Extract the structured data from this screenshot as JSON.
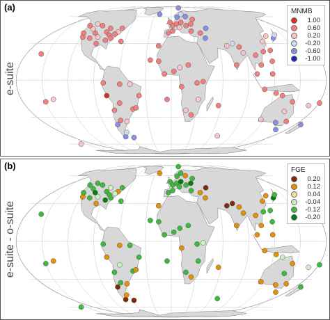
{
  "panels": [
    {
      "label": "(a)",
      "side_label": "e-suite",
      "legend": {
        "title": "MNMB",
        "entries": [
          {
            "label": "1.00",
            "color": "#d73027"
          },
          {
            "label": "0.60",
            "color": "#f08080"
          },
          {
            "label": "0.20",
            "color": "#f8c4c4"
          },
          {
            "label": "-0.20",
            "color": "#d6d8f4"
          },
          {
            "label": "-0.60",
            "color": "#8890e0"
          },
          {
            "label": "-1.00",
            "color": "#2424c0"
          }
        ]
      }
    },
    {
      "label": "(b)",
      "side_label": "e-suite - o-suite",
      "legend": {
        "title": "FGE",
        "entries": [
          {
            "label": "0.20",
            "color": "#7a2a08"
          },
          {
            "label": "0.12",
            "color": "#e3900a"
          },
          {
            "label": "0.04",
            "color": "#f6e39a"
          },
          {
            "label": "-0.04",
            "color": "#cfefc4"
          },
          {
            "label": "-0.12",
            "color": "#3fb83f"
          },
          {
            "label": "-0.20",
            "color": "#0a7a12"
          }
        ]
      }
    }
  ],
  "colors": {
    "land": "#d8d8d8",
    "ocean": "#ffffff",
    "grid": "#c8c8c8",
    "marker_edge": "#555555"
  }
}
